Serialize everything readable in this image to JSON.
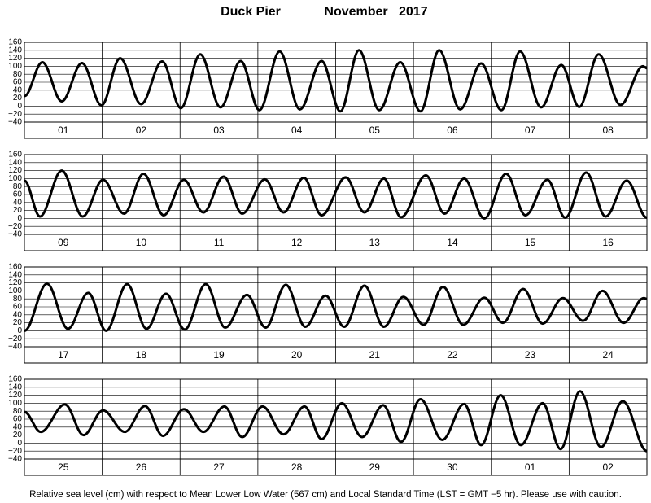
{
  "header": {
    "title": "Duck Pier",
    "subtitle": "November   2017"
  },
  "footer": "Relative sea level (cm) with respect to Mean Lower Low Water (567 cm) and Local Standard Time (LST = GMT −5 hr). Please use with caution.",
  "chart_data": [
    {
      "type": "line",
      "categories": [
        "01",
        "02",
        "03",
        "04",
        "05",
        "06",
        "07",
        "08"
      ],
      "xlim": [
        0,
        8
      ],
      "ylim": [
        -40,
        160
      ],
      "yticks": [
        {
          "value": -40,
          "label": "−40"
        },
        {
          "value": -20,
          "label": "−20"
        },
        0,
        20,
        40,
        60,
        80,
        100,
        120,
        140,
        160
      ],
      "grid": true,
      "x": [
        0,
        0.23,
        0.48,
        0.74,
        0.99,
        1.23,
        1.5,
        1.77,
        2.01,
        2.26,
        2.52,
        2.78,
        3.02,
        3.28,
        3.54,
        3.82,
        4.06,
        4.3,
        4.56,
        4.83,
        5.09,
        5.33,
        5.6,
        5.87,
        6.13,
        6.37,
        6.64,
        6.9,
        7.13,
        7.38,
        7.66,
        7.95,
        8
      ],
      "series": [
        {
          "color": "#000000",
          "values": [
            25,
            110,
            12,
            108,
            2,
            120,
            5,
            112,
            -5,
            130,
            -3,
            113,
            -10,
            137,
            -8,
            113,
            -13,
            140,
            -10,
            110,
            -13,
            140,
            -8,
            107,
            -10,
            137,
            -3,
            103,
            -2,
            130,
            3,
            100,
            95
          ]
        }
      ]
    },
    {
      "type": "line",
      "categories": [
        "09",
        "10",
        "11",
        "12",
        "13",
        "14",
        "15",
        "16"
      ],
      "xlim": [
        0,
        8
      ],
      "ylim": [
        -40,
        160
      ],
      "yticks": [
        {
          "value": -40,
          "label": "−40"
        },
        {
          "value": -20,
          "label": "−20"
        },
        0,
        20,
        40,
        60,
        80,
        100,
        120,
        140,
        160
      ],
      "grid": true,
      "x": [
        0,
        0.2,
        0.48,
        0.75,
        1.01,
        1.28,
        1.53,
        1.79,
        2.05,
        2.3,
        2.56,
        2.8,
        3.09,
        3.33,
        3.59,
        3.82,
        4.13,
        4.37,
        4.62,
        4.84,
        5.16,
        5.4,
        5.65,
        5.91,
        6.19,
        6.44,
        6.72,
        6.95,
        7.22,
        7.47,
        7.74,
        8
      ],
      "series": [
        {
          "color": "#000000",
          "values": [
            95,
            5,
            120,
            5,
            97,
            12,
            112,
            8,
            97,
            15,
            105,
            12,
            98,
            15,
            102,
            8,
            103,
            15,
            100,
            3,
            108,
            12,
            100,
            0,
            112,
            8,
            97,
            2,
            115,
            5,
            95,
            2
          ]
        }
      ]
    },
    {
      "type": "line",
      "categories": [
        "17",
        "18",
        "19",
        "20",
        "21",
        "22",
        "23",
        "24"
      ],
      "xlim": [
        0,
        8
      ],
      "ylim": [
        -40,
        160
      ],
      "yticks": [
        {
          "value": -40,
          "label": "−40"
        },
        {
          "value": -20,
          "label": "−20"
        },
        0,
        20,
        40,
        60,
        80,
        100,
        120,
        140,
        160
      ],
      "grid": true,
      "x": [
        0,
        0.29,
        0.56,
        0.82,
        1.05,
        1.32,
        1.57,
        1.82,
        2.06,
        2.33,
        2.58,
        2.86,
        3.1,
        3.36,
        3.61,
        3.87,
        4.11,
        4.37,
        4.62,
        4.87,
        5.13,
        5.38,
        5.64,
        5.91,
        6.15,
        6.41,
        6.66,
        6.92,
        7.18,
        7.43,
        7.7,
        7.96,
        8
      ],
      "series": [
        {
          "color": "#000000",
          "values": [
            0,
            118,
            5,
            95,
            0,
            117,
            5,
            93,
            3,
            117,
            8,
            90,
            8,
            115,
            10,
            88,
            10,
            113,
            10,
            85,
            15,
            110,
            15,
            83,
            20,
            105,
            18,
            82,
            25,
            100,
            20,
            82,
            80
          ]
        }
      ]
    },
    {
      "type": "line",
      "categories": [
        "25",
        "26",
        "27",
        "28",
        "29",
        "30",
        "01",
        "02"
      ],
      "xlim": [
        0,
        8
      ],
      "ylim": [
        -40,
        160
      ],
      "yticks": [
        {
          "value": -40,
          "label": "−40"
        },
        {
          "value": -20,
          "label": "−20"
        },
        0,
        20,
        40,
        60,
        80,
        100,
        120,
        140,
        160
      ],
      "grid": true,
      "x": [
        0,
        0.21,
        0.52,
        0.76,
        1.01,
        1.29,
        1.55,
        1.78,
        2.05,
        2.3,
        2.57,
        2.8,
        3.06,
        3.33,
        3.6,
        3.82,
        4.08,
        4.34,
        4.61,
        4.84,
        5.09,
        5.37,
        5.65,
        5.87,
        6.12,
        6.38,
        6.66,
        6.89,
        7.14,
        7.41,
        7.69,
        8
      ],
      "series": [
        {
          "color": "#000000",
          "values": [
            78,
            28,
            97,
            20,
            82,
            28,
            93,
            18,
            85,
            28,
            92,
            15,
            92,
            22,
            92,
            10,
            100,
            15,
            95,
            3,
            110,
            8,
            98,
            -5,
            120,
            -5,
            100,
            -15,
            130,
            -10,
            105,
            -20
          ]
        }
      ]
    }
  ]
}
